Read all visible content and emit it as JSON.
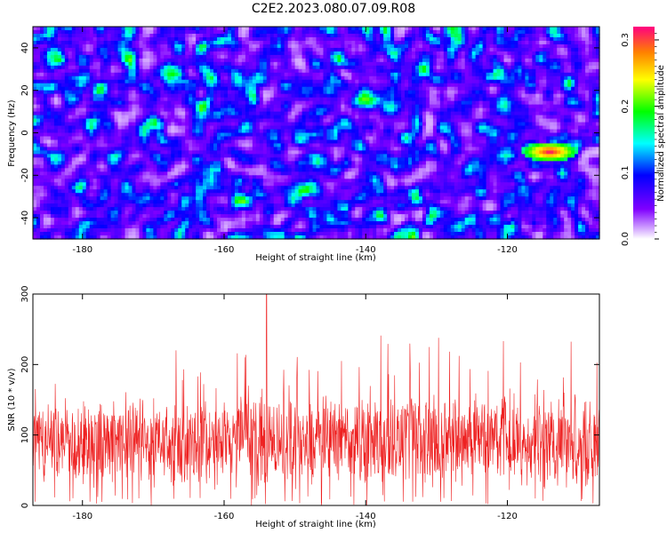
{
  "title": "C2E2.2023.080.07.09.R08",
  "chart_data": [
    {
      "type": "heatmap",
      "xlabel": "Height of straight line (km)",
      "ylabel": "Frequency (Hz)",
      "xlim": [
        -187,
        -107
      ],
      "ylim": [
        -50,
        50
      ],
      "x_ticks": [
        -180,
        -160,
        -140,
        -120
      ],
      "y_ticks": [
        -40,
        -20,
        0,
        20,
        40
      ],
      "grid": false,
      "colorbar": {
        "label": "Normalized spectral amplitude",
        "range": [
          0.0,
          0.32
        ],
        "ticks": [
          "0.0",
          "0.1",
          "0.2",
          "0.3"
        ],
        "tick_values": [
          0.0,
          0.1,
          0.2,
          0.3
        ],
        "colormap": [
          "#ffffff",
          "#8000ff",
          "#0000ff",
          "#00ffff",
          "#00ff00",
          "#ffff00",
          "#ff8000",
          "#ff0080"
        ]
      },
      "peak": {
        "x": -114,
        "y": -9,
        "value": 0.32
      }
    },
    {
      "type": "line",
      "xlabel": "Height of straight line (km)",
      "ylabel": "SNR (10 * v/v)",
      "xlim": [
        -187,
        -107
      ],
      "ylim": [
        0,
        300
      ],
      "x_ticks": [
        -180,
        -160,
        -140,
        -120
      ],
      "y_ticks": [
        0,
        100,
        200,
        300
      ],
      "grid": false,
      "color": "#ee2222",
      "series_mean": 90,
      "series_max": 300,
      "series_max_at": -154
    }
  ]
}
